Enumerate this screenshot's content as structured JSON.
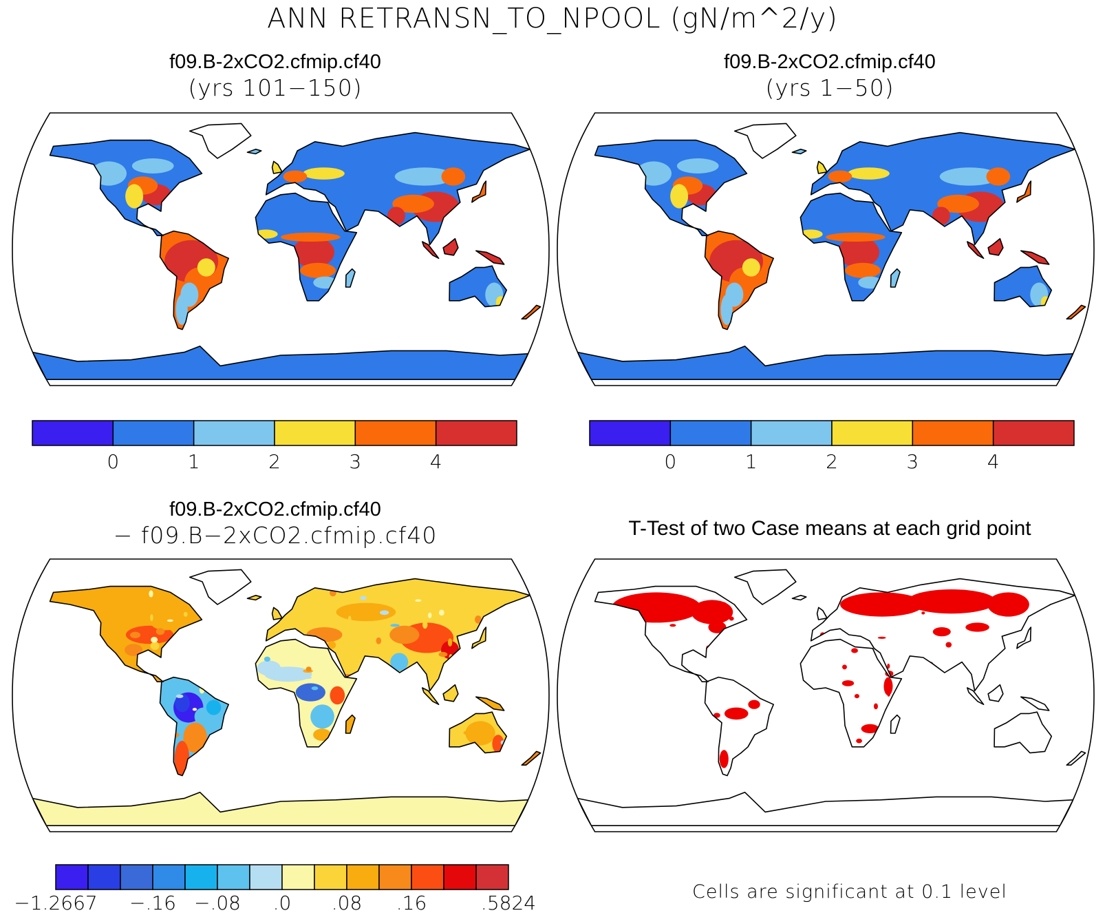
{
  "title": "ANN RETRANSN_TO_NPOOL (gN/m^2/y)",
  "panels": {
    "top_left": {
      "title": "f09.B-2xCO2.cfmip.cf40",
      "subtitle": "(yrs 101−150)"
    },
    "top_right": {
      "title": "f09.B-2xCO2.cfmip.cf40",
      "subtitle": "(yrs 1−50)"
    },
    "bottom_left": {
      "title": "f09.B-2xCO2.cfmip.cf40",
      "subtitle": "− f09.B−2xCO2.cfmip.cf40"
    },
    "bottom_right": {
      "title": "T-Test of two Case means at each grid point",
      "footnote": "Cells are significant at 0.1 level"
    }
  },
  "colorbars": {
    "absolute": {
      "colors": [
        "#3a1ff0",
        "#2f7ae8",
        "#7ec6ee",
        "#f8df35",
        "#fb6a0a",
        "#d8302e"
      ],
      "labels": [
        "0",
        "1",
        "2",
        "3",
        "4"
      ]
    },
    "difference": {
      "colors": [
        "#3a1ff0",
        "#2a3ee6",
        "#3a6ad8",
        "#2f8ae8",
        "#17b2ee",
        "#5ec2ee",
        "#b6def2",
        "#fbf7a8",
        "#fbd43a",
        "#f8ac10",
        "#f78a1a",
        "#fc4e12",
        "#e4080a",
        "#d33136"
      ],
      "labels": [
        "−1.2667",
        "−.16",
        "−.08",
        ".0",
        ".08",
        ".16",
        ".5824"
      ]
    }
  },
  "legend_colors": {
    "significant": "#ee0000"
  }
}
